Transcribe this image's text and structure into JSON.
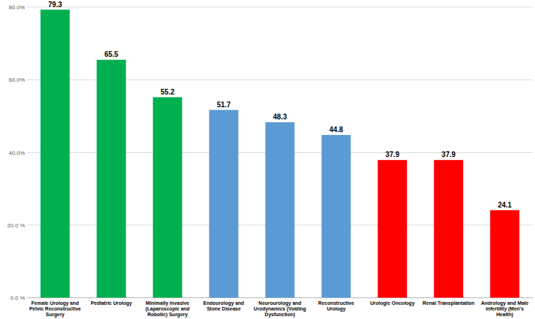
{
  "chart_data": {
    "type": "bar",
    "categories": [
      "Female Urology and Pelvic Reconstructive Surgery",
      "Pediatric Urology",
      "Minimally Invasive (Laparoscopic and Robotic) Surgery",
      "Endourology and Stone Disease",
      "Neurourology and Urodynamics (Voiding Dysfunction)",
      "Reconstructive Urology",
      "Urologic Oncology",
      "Renal Transplantation",
      "Andrology and Male Infertility (Men's Health)"
    ],
    "values": [
      79.3,
      65.5,
      55.2,
      51.7,
      48.3,
      44.8,
      37.9,
      37.9,
      24.1
    ],
    "colors": [
      "#00b050",
      "#00b050",
      "#00b050",
      "#5b9bd5",
      "#5b9bd5",
      "#5b9bd5",
      "#ff0000",
      "#ff0000",
      "#ff0000"
    ],
    "ylim": [
      0,
      80
    ],
    "yticks": [
      {
        "value": 0,
        "label": "0.0 %"
      },
      {
        "value": 20,
        "label": "20.0 %"
      },
      {
        "value": 40,
        "label": "40.0%"
      },
      {
        "value": 60,
        "label": "60.0%"
      },
      {
        "value": 80,
        "label": "80.0%"
      }
    ],
    "grid": true,
    "data_labels": true
  }
}
